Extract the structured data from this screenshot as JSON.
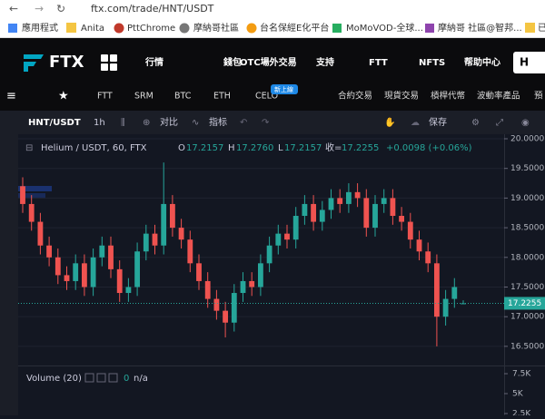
{
  "browser": {
    "url": "ftx.com/trade/HNT/USDT",
    "bookmarks": [
      "應用程式",
      "Anita",
      "PttChrome",
      "摩納哥社區",
      "台名保經E化平台",
      "MoMoVOD-全球...",
      "摩納哥 社區@智邦...",
      "已"
    ]
  },
  "header": {
    "logo": "FTX",
    "nav": [
      "行情",
      "錢包",
      "OTC場外交易",
      "支持",
      "FTT",
      "NFTS",
      "帮助中心"
    ],
    "button": "H"
  },
  "subnav": {
    "coins": [
      "FTT",
      "SRM",
      "BTC",
      "ETH",
      "CELO"
    ],
    "badge": "新上線",
    "links": [
      "合約交易",
      "現貨交易",
      "槓桿代幣",
      "波動率產品",
      "預"
    ]
  },
  "toolbar": {
    "symbol": "HNT/USDT",
    "interval": "1h",
    "compare": "对比",
    "indicators": "指标",
    "save": "保存"
  },
  "legend": {
    "name": "Helium / USDT, 60, FTX",
    "o_label": "O",
    "o": "17.2157",
    "h_label": "H",
    "h": "17.2760",
    "l_label": "L",
    "l": "17.2157",
    "c_label": "收=",
    "c": "17.2255",
    "change": "+0.0098 (+0.06%)"
  },
  "chart_data": {
    "type": "candlestick",
    "up_color": "#26a69a",
    "down_color": "#ef5350",
    "open": [
      19.2,
      18.9,
      18.6,
      18.2,
      18.0,
      17.7,
      17.6,
      17.9,
      17.5,
      18.0,
      18.2,
      17.8,
      17.4,
      17.5,
      18.1,
      18.4,
      18.2,
      18.9,
      18.5,
      18.3,
      17.9,
      17.6,
      17.3,
      17.1,
      16.9,
      17.4,
      17.6,
      17.5,
      17.9,
      18.2,
      18.4,
      18.3,
      18.7,
      18.9,
      18.6,
      18.8,
      19.0,
      18.9,
      19.1,
      19.0,
      18.5,
      18.9,
      19.0,
      18.7,
      18.6,
      18.3,
      18.1,
      17.9,
      17.0,
      17.3,
      17.2157
    ],
    "high": [
      19.35,
      19.05,
      18.75,
      18.35,
      18.15,
      17.85,
      18.05,
      18.05,
      18.15,
      18.35,
      18.35,
      17.95,
      17.65,
      18.25,
      18.55,
      18.55,
      19.6,
      19.05,
      18.65,
      18.45,
      18.05,
      17.75,
      17.45,
      17.25,
      17.55,
      17.75,
      17.75,
      18.05,
      18.35,
      18.55,
      18.55,
      18.85,
      19.05,
      19.05,
      18.95,
      19.15,
      19.15,
      19.25,
      19.25,
      19.15,
      19.05,
      19.15,
      19.15,
      18.85,
      18.75,
      18.45,
      18.25,
      18.05,
      17.45,
      17.65,
      17.276
    ],
    "low": [
      18.75,
      18.45,
      18.05,
      17.85,
      17.55,
      17.45,
      17.45,
      17.35,
      17.35,
      17.85,
      17.65,
      17.25,
      17.25,
      17.35,
      17.95,
      18.05,
      18.05,
      18.35,
      18.15,
      17.75,
      17.45,
      17.15,
      16.95,
      16.65,
      16.75,
      17.25,
      17.35,
      17.35,
      17.75,
      18.05,
      18.15,
      18.15,
      18.55,
      18.45,
      18.45,
      18.65,
      18.75,
      18.75,
      18.85,
      18.35,
      18.35,
      18.75,
      18.55,
      18.45,
      18.15,
      17.95,
      17.75,
      16.5,
      16.85,
      17.15,
      17.2157
    ],
    "close": [
      18.9,
      18.6,
      18.2,
      18.0,
      17.7,
      17.6,
      17.9,
      17.5,
      18.0,
      18.2,
      17.8,
      17.4,
      17.5,
      18.1,
      18.4,
      18.2,
      18.9,
      18.5,
      18.3,
      17.9,
      17.6,
      17.3,
      17.1,
      16.9,
      17.4,
      17.6,
      17.5,
      17.9,
      18.2,
      18.4,
      18.3,
      18.7,
      18.9,
      18.6,
      18.8,
      19.0,
      18.9,
      19.1,
      19.0,
      18.5,
      18.9,
      19.0,
      18.7,
      18.6,
      18.3,
      18.1,
      17.9,
      17.0,
      17.3,
      17.5,
      17.2255
    ],
    "ylim": [
      16.2,
      20.0
    ],
    "yticks": [
      {
        "value": 20.0,
        "label": "20.0000"
      },
      {
        "value": 19.5,
        "label": "19.5000"
      },
      {
        "value": 19.0,
        "label": "19.0000"
      },
      {
        "value": 18.5,
        "label": "18.5000"
      },
      {
        "value": 18.0,
        "label": "18.0000"
      },
      {
        "value": 17.5,
        "label": "17.5000"
      },
      {
        "value": 17.0,
        "label": "17.0000"
      },
      {
        "value": 16.5,
        "label": "16.5000"
      }
    ],
    "last_price_label": "17.2255"
  },
  "volume": {
    "title": "Volume (20)",
    "value": "0",
    "na": "n/a",
    "ylim": [
      2270,
      8300
    ],
    "yticks": [
      {
        "value": 7500,
        "label": "7.5K"
      },
      {
        "value": 5000,
        "label": "5K"
      },
      {
        "value": 2500,
        "label": "2.5K"
      }
    ]
  }
}
